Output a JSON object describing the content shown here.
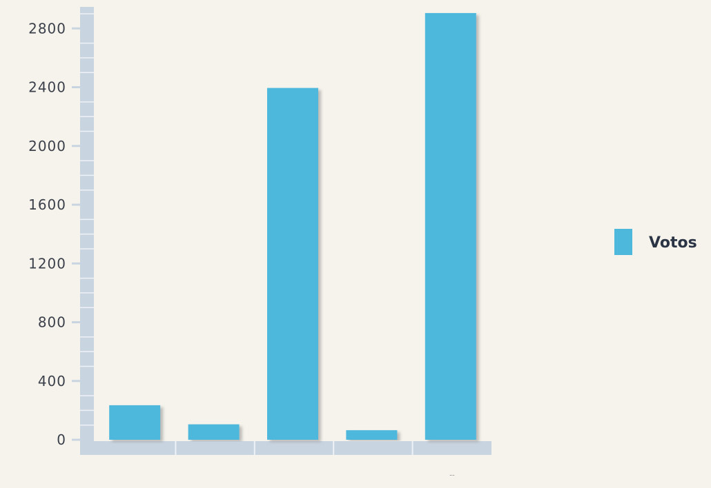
{
  "chart_data": {
    "type": "bar",
    "categories": [
      "",
      "",
      "",
      "",
      "..."
    ],
    "series": [
      {
        "name": "Votos",
        "values": [
          235,
          105,
          2395,
          65,
          2905
        ]
      }
    ],
    "ylim": [
      0,
      2900
    ],
    "y_ticks": [
      0,
      400,
      800,
      1200,
      1600,
      2000,
      2400,
      2800
    ],
    "title": "",
    "xlabel": "",
    "ylabel": "",
    "grid": false,
    "legend_position": "right",
    "colors": {
      "bar": "#4db8dc",
      "bar_shadow": "#8a8a8a",
      "axis": "#c9d4e1",
      "axis_line": "#eef2f6",
      "background": "#f6f3ec",
      "text": "#3a3f4a"
    }
  }
}
